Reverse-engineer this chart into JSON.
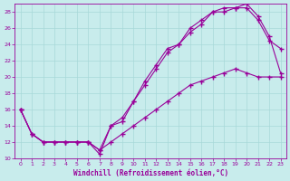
{
  "xlabel": "Windchill (Refroidissement éolien,°C)",
  "bg_color": "#c8ecec",
  "grid_color": "#a8d8d8",
  "line_color": "#990099",
  "xlim_min": -0.5,
  "xlim_max": 23.5,
  "ylim_min": 10,
  "ylim_max": 29,
  "xticks": [
    0,
    1,
    2,
    3,
    4,
    5,
    6,
    7,
    8,
    9,
    10,
    11,
    12,
    13,
    14,
    15,
    16,
    17,
    18,
    19,
    20,
    21,
    22,
    23
  ],
  "yticks": [
    10,
    12,
    14,
    16,
    18,
    20,
    22,
    24,
    26,
    28
  ],
  "line1_x": [
    0,
    1,
    2,
    3,
    4,
    5,
    6,
    7,
    8,
    9,
    10,
    11,
    12,
    13,
    14,
    15,
    16,
    17,
    18,
    19,
    20,
    21,
    22,
    23
  ],
  "line1_y": [
    16,
    13,
    12,
    12,
    12,
    12,
    12,
    11,
    14,
    15,
    17,
    19.5,
    21.5,
    23.5,
    24,
    26,
    27,
    28,
    28.5,
    28.5,
    29,
    27.5,
    25,
    20.5
  ],
  "line2_x": [
    0,
    1,
    2,
    3,
    4,
    5,
    6,
    7,
    8,
    9,
    10,
    11,
    12,
    13,
    14,
    15,
    16,
    17,
    18,
    19,
    20,
    21,
    22,
    23
  ],
  "line2_y": [
    16,
    13,
    12,
    12,
    12,
    12,
    12,
    10.5,
    14,
    14.5,
    17,
    19,
    21,
    23,
    24,
    25.5,
    26.5,
    28,
    28,
    28.5,
    28.5,
    27,
    24.5,
    23.5
  ],
  "line3_x": [
    0,
    1,
    2,
    3,
    4,
    5,
    6,
    7,
    8,
    9,
    10,
    11,
    12,
    13,
    14,
    15,
    16,
    17,
    18,
    19,
    20,
    21,
    22,
    23
  ],
  "line3_y": [
    16,
    13,
    12,
    12,
    12,
    12,
    12,
    11,
    12,
    13,
    14,
    15,
    16,
    17,
    18,
    19,
    19.5,
    20,
    20.5,
    21,
    20.5,
    20,
    20,
    20
  ]
}
